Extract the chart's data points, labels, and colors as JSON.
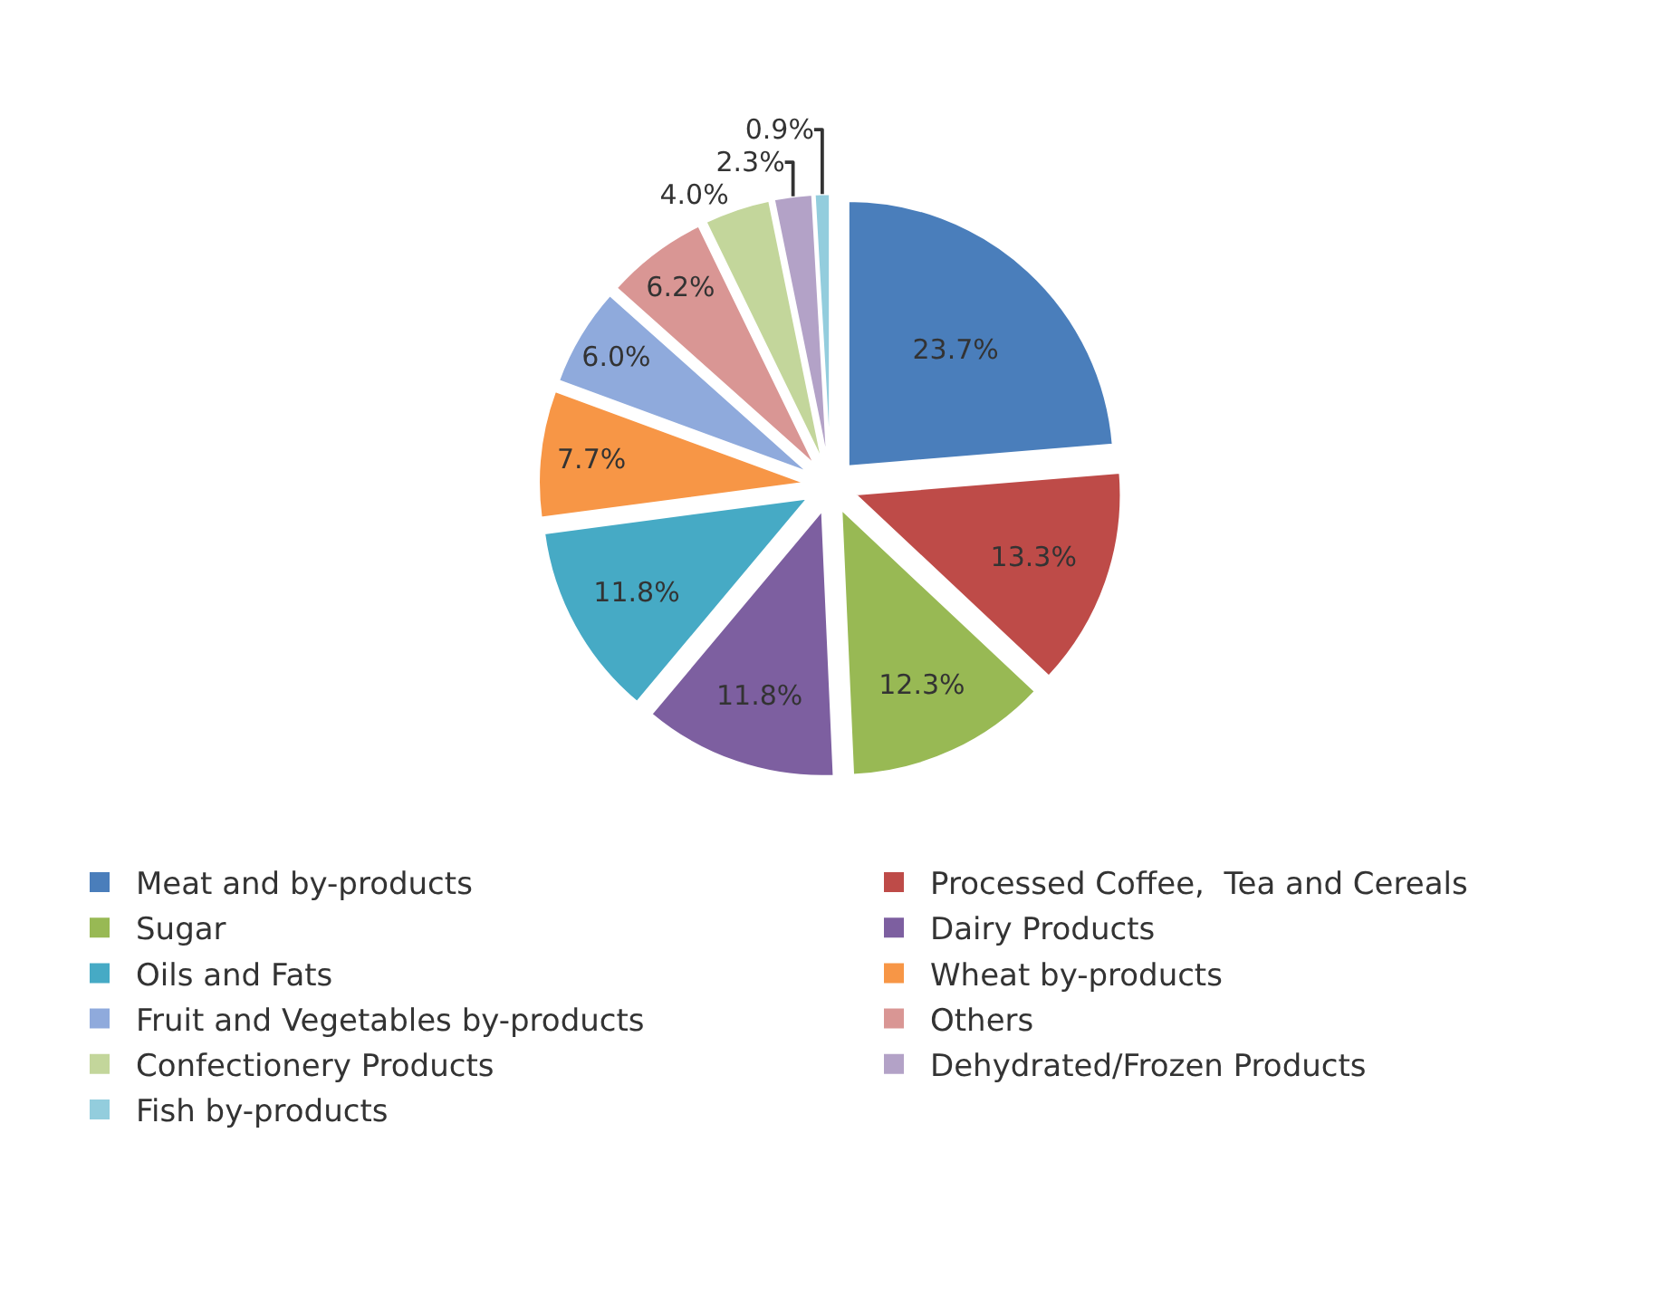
{
  "chart_data": {
    "type": "pie",
    "categories": [
      "Meat and by-products",
      "Processed Coffee,  Tea and Cereals",
      "Sugar",
      "Dairy Products",
      "Oils and Fats",
      "Wheat by-products",
      "Fruit and Vegetables by-products",
      "Others",
      "Confectionery Products",
      "Dehydrated/Frozen Products",
      "Fish by-products"
    ],
    "values": [
      23.7,
      13.3,
      12.3,
      11.8,
      11.8,
      7.7,
      6.0,
      6.2,
      4.0,
      2.3,
      0.9
    ],
    "value_labels": [
      "23.7%",
      "13.3%",
      "12.3%",
      "11.8%",
      "11.8%",
      "7.7%",
      "6.0%",
      "6.2%",
      "4.0%",
      "2.3%",
      "0.9%"
    ],
    "colors": [
      "#4a7ebb",
      "#be4b48",
      "#98b954",
      "#7d5fa0",
      "#46aac5",
      "#f79646",
      "#8faadc",
      "#d99694",
      "#c3d69b",
      "#b3a2c7",
      "#93cddd"
    ],
    "legend": "bottom"
  }
}
